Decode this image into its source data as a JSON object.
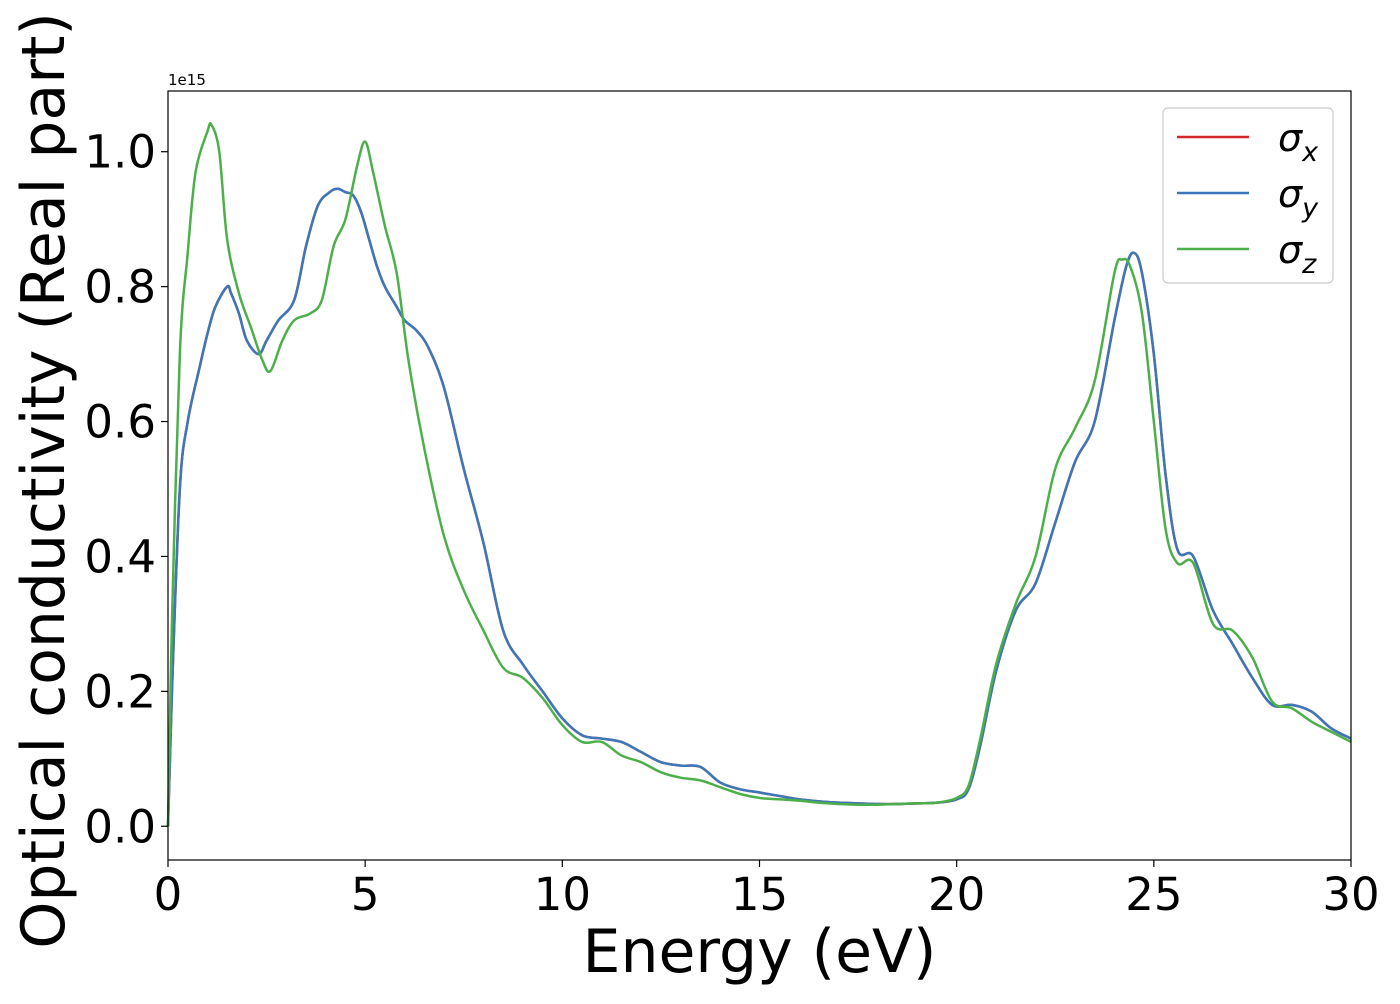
{
  "chart_data": {
    "type": "line",
    "title": "",
    "xlabel": "Energy (eV)",
    "ylabel": "Optical conductivity (Real part)",
    "y_offset_label": "1e15",
    "xlim": [
      0,
      30
    ],
    "ylim": [
      -0.05,
      1.09
    ],
    "y_scale_factor": 1000000000000000.0,
    "x_ticks": [
      0,
      5,
      10,
      15,
      20,
      25,
      30
    ],
    "x_tick_labels": [
      "0",
      "5",
      "10",
      "15",
      "20",
      "25",
      "30"
    ],
    "y_ticks": [
      0.0,
      0.2,
      0.4,
      0.6,
      0.8,
      1.0
    ],
    "y_tick_labels": [
      "0.0",
      "0.2",
      "0.4",
      "0.6",
      "0.8",
      "1.0"
    ],
    "grid": false,
    "legend_position": "top-right",
    "colors": {
      "sigma_x": "#d62728",
      "sigma_y": "#3b78b8",
      "sigma_z": "#4daf4a",
      "axis": "#000000"
    },
    "series": [
      {
        "name": "σx",
        "legend_base": "σ",
        "legend_sub": "x",
        "color": "#d62728",
        "x": [
          0,
          0.1,
          0.3,
          0.5,
          0.8,
          1.0,
          1.2,
          1.5,
          1.6,
          1.8,
          2.0,
          2.3,
          2.5,
          2.8,
          3.2,
          3.5,
          3.8,
          4.1,
          4.3,
          4.5,
          4.7,
          4.9,
          5.1,
          5.3,
          5.5,
          5.8,
          6.0,
          6.3,
          6.6,
          7.0,
          7.5,
          8.0,
          8.5,
          9.0,
          9.5,
          10.0,
          10.5,
          11.0,
          11.5,
          12.0,
          12.5,
          13.0,
          13.5,
          14.0,
          14.5,
          15.0,
          15.5,
          16.0,
          16.5,
          17.0,
          17.5,
          18.0,
          18.5,
          19.0,
          19.5,
          20.0,
          20.3,
          20.6,
          21.0,
          21.5,
          22.0,
          22.5,
          23.0,
          23.5,
          24.0,
          24.3,
          24.5,
          24.7,
          25.0,
          25.3,
          25.6,
          26.0,
          26.5,
          27.0,
          27.5,
          28.0,
          28.5,
          29.0,
          29.5,
          30.0
        ],
        "y": [
          0.0,
          0.2,
          0.5,
          0.6,
          0.68,
          0.73,
          0.77,
          0.8,
          0.79,
          0.76,
          0.72,
          0.7,
          0.72,
          0.75,
          0.78,
          0.86,
          0.92,
          0.94,
          0.945,
          0.94,
          0.935,
          0.91,
          0.87,
          0.83,
          0.8,
          0.77,
          0.75,
          0.735,
          0.71,
          0.65,
          0.53,
          0.42,
          0.29,
          0.24,
          0.2,
          0.16,
          0.135,
          0.13,
          0.125,
          0.11,
          0.095,
          0.09,
          0.088,
          0.065,
          0.055,
          0.05,
          0.045,
          0.04,
          0.037,
          0.035,
          0.034,
          0.033,
          0.033,
          0.034,
          0.035,
          0.04,
          0.055,
          0.12,
          0.23,
          0.32,
          0.36,
          0.45,
          0.54,
          0.6,
          0.75,
          0.83,
          0.85,
          0.82,
          0.7,
          0.52,
          0.41,
          0.4,
          0.32,
          0.27,
          0.22,
          0.18,
          0.18,
          0.17,
          0.145,
          0.13
        ]
      },
      {
        "name": "σy",
        "legend_base": "σ",
        "legend_sub": "y",
        "color": "#3b78b8",
        "x": [
          0,
          0.1,
          0.3,
          0.5,
          0.8,
          1.0,
          1.2,
          1.5,
          1.6,
          1.8,
          2.0,
          2.3,
          2.5,
          2.8,
          3.2,
          3.5,
          3.8,
          4.1,
          4.3,
          4.5,
          4.7,
          4.9,
          5.1,
          5.3,
          5.5,
          5.8,
          6.0,
          6.3,
          6.6,
          7.0,
          7.5,
          8.0,
          8.5,
          9.0,
          9.5,
          10.0,
          10.5,
          11.0,
          11.5,
          12.0,
          12.5,
          13.0,
          13.5,
          14.0,
          14.5,
          15.0,
          15.5,
          16.0,
          16.5,
          17.0,
          17.5,
          18.0,
          18.5,
          19.0,
          19.5,
          20.0,
          20.3,
          20.6,
          21.0,
          21.5,
          22.0,
          22.5,
          23.0,
          23.5,
          24.0,
          24.3,
          24.5,
          24.7,
          25.0,
          25.3,
          25.6,
          26.0,
          26.5,
          27.0,
          27.5,
          28.0,
          28.5,
          29.0,
          29.5,
          30.0
        ],
        "y": [
          0.0,
          0.2,
          0.5,
          0.6,
          0.68,
          0.73,
          0.77,
          0.8,
          0.79,
          0.76,
          0.72,
          0.7,
          0.72,
          0.75,
          0.78,
          0.86,
          0.92,
          0.94,
          0.945,
          0.94,
          0.935,
          0.91,
          0.87,
          0.83,
          0.8,
          0.77,
          0.75,
          0.735,
          0.71,
          0.65,
          0.53,
          0.42,
          0.29,
          0.24,
          0.2,
          0.16,
          0.135,
          0.13,
          0.125,
          0.11,
          0.095,
          0.09,
          0.088,
          0.065,
          0.055,
          0.05,
          0.045,
          0.04,
          0.037,
          0.035,
          0.034,
          0.033,
          0.033,
          0.034,
          0.035,
          0.04,
          0.055,
          0.12,
          0.23,
          0.32,
          0.36,
          0.45,
          0.54,
          0.6,
          0.75,
          0.83,
          0.85,
          0.82,
          0.7,
          0.52,
          0.41,
          0.4,
          0.32,
          0.27,
          0.22,
          0.18,
          0.18,
          0.17,
          0.145,
          0.13
        ]
      },
      {
        "name": "σz",
        "legend_base": "σ",
        "legend_sub": "z",
        "color": "#4daf4a",
        "x": [
          0,
          0.1,
          0.3,
          0.5,
          0.7,
          1.0,
          1.1,
          1.3,
          1.5,
          1.8,
          2.1,
          2.4,
          2.6,
          2.9,
          3.2,
          3.6,
          3.9,
          4.2,
          4.5,
          4.8,
          5.0,
          5.2,
          5.5,
          5.8,
          6.1,
          6.5,
          7.0,
          7.5,
          8.0,
          8.5,
          9.0,
          9.5,
          10.0,
          10.5,
          11.0,
          11.5,
          12.0,
          12.5,
          13.0,
          13.5,
          14.0,
          14.5,
          15.0,
          15.5,
          16.0,
          16.5,
          17.0,
          17.5,
          18.0,
          18.5,
          19.0,
          19.5,
          20.0,
          20.3,
          20.6,
          21.0,
          21.5,
          22.0,
          22.5,
          23.0,
          23.5,
          24.0,
          24.2,
          24.4,
          24.7,
          25.0,
          25.3,
          25.6,
          26.0,
          26.5,
          27.0,
          27.5,
          28.0,
          28.5,
          29.0,
          29.5,
          30.0
        ],
        "y": [
          0.0,
          0.3,
          0.7,
          0.85,
          0.97,
          1.03,
          1.04,
          1.0,
          0.87,
          0.79,
          0.74,
          0.69,
          0.675,
          0.72,
          0.75,
          0.76,
          0.78,
          0.86,
          0.9,
          0.98,
          1.015,
          0.97,
          0.89,
          0.82,
          0.69,
          0.56,
          0.43,
          0.35,
          0.29,
          0.235,
          0.22,
          0.19,
          0.15,
          0.125,
          0.125,
          0.105,
          0.095,
          0.08,
          0.072,
          0.068,
          0.058,
          0.048,
          0.042,
          0.04,
          0.038,
          0.035,
          0.033,
          0.032,
          0.032,
          0.033,
          0.034,
          0.035,
          0.042,
          0.06,
          0.13,
          0.24,
          0.33,
          0.4,
          0.53,
          0.59,
          0.66,
          0.82,
          0.84,
          0.83,
          0.76,
          0.6,
          0.44,
          0.39,
          0.39,
          0.3,
          0.29,
          0.25,
          0.185,
          0.175,
          0.155,
          0.14,
          0.125
        ]
      }
    ]
  }
}
